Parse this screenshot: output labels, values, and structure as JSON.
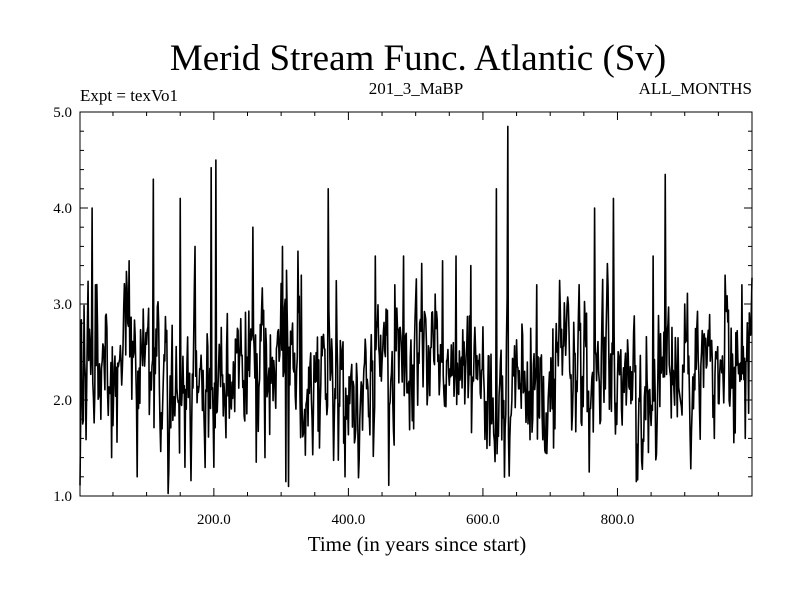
{
  "chart_data": {
    "type": "line",
    "title": "Merid Stream Func. Atlantic (Sv)",
    "subtitle_left": "Expt = texVo1",
    "subtitle_center": "201_3_MaBP",
    "subtitle_right": "ALL_MONTHS",
    "xlabel": "Time (in years since start)",
    "ylabel": "",
    "xlim": [
      1,
      1000
    ],
    "ylim": [
      1.0,
      5.0
    ],
    "x_ticks": [
      200,
      400,
      600,
      800
    ],
    "x_tick_labels": [
      "200.0",
      "400.0",
      "600.0",
      "800.0"
    ],
    "y_ticks": [
      1.0,
      2.0,
      3.0,
      4.0,
      5.0
    ],
    "y_tick_labels": [
      "1.0",
      "2.0",
      "3.0",
      "4.0",
      "5.0"
    ],
    "grid": false,
    "series": [
      {
        "name": "Merid Stream Func. Atlantic",
        "color": "#000000",
        "generator": {
          "n": 1000,
          "x_start": 1,
          "x_step": 1,
          "mean": 2.25,
          "std": 0.38,
          "seed": 201
        },
        "peaks": [
          [
            5,
            1.75
          ],
          [
            19,
            4.0
          ],
          [
            24,
            3.2
          ],
          [
            32,
            1.8
          ],
          [
            48,
            1.4
          ],
          [
            74,
            3.45
          ],
          [
            86,
            1.2
          ],
          [
            110,
            4.3
          ],
          [
            123,
            1.7
          ],
          [
            150,
            4.1
          ],
          [
            157,
            1.3
          ],
          [
            172,
            3.6
          ],
          [
            196,
            4.42
          ],
          [
            200,
            1.3
          ],
          [
            203,
            4.5
          ],
          [
            220,
            2.9
          ],
          [
            258,
            3.8
          ],
          [
            276,
            1.4
          ],
          [
            302,
            3.6
          ],
          [
            307,
            1.15
          ],
          [
            311,
            1.1
          ],
          [
            330,
            3.3
          ],
          [
            357,
            1.5
          ],
          [
            370,
            4.2
          ],
          [
            395,
            1.2
          ],
          [
            418,
            2.0
          ],
          [
            440,
            3.5
          ],
          [
            469,
            3.2
          ],
          [
            482,
            3.5
          ],
          [
            497,
            1.7
          ],
          [
            517,
            1.95
          ],
          [
            540,
            3.45
          ],
          [
            560,
            3.5
          ],
          [
            582,
            3.4
          ],
          [
            620,
            4.2
          ],
          [
            637,
            4.85
          ],
          [
            661,
            2.1
          ],
          [
            680,
            3.2
          ],
          [
            705,
            1.5
          ],
          [
            710,
            2.5
          ],
          [
            758,
            1.25
          ],
          [
            766,
            4.0
          ],
          [
            794,
            4.1
          ],
          [
            822,
            2.0
          ],
          [
            828,
            1.15
          ],
          [
            853,
            3.5
          ],
          [
            871,
            4.35
          ],
          [
            900,
            3.0
          ],
          [
            925,
            2.5
          ],
          [
            944,
            1.6
          ],
          [
            960,
            3.3
          ],
          [
            985,
            3.2
          ],
          [
            990,
            1.6
          ]
        ]
      }
    ]
  }
}
